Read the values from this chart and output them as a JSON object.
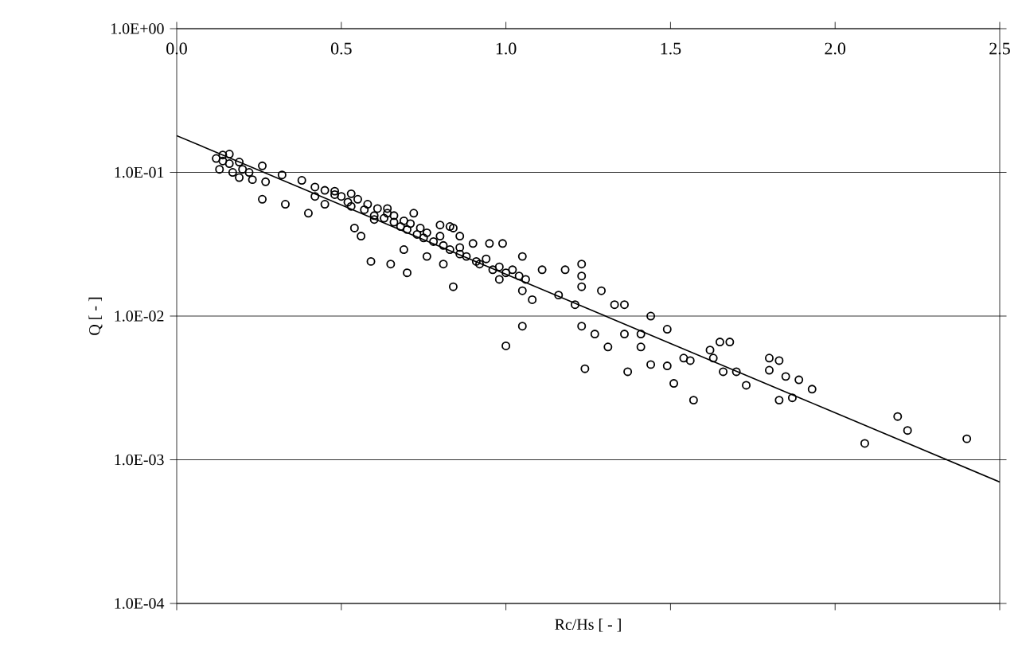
{
  "chart_data": {
    "type": "scatter",
    "xlabel": "Rc/Hs [ - ]",
    "ylabel": "Q [ - ]",
    "xlim": [
      0,
      2.5
    ],
    "ylim": [
      0.0001,
      1
    ],
    "log": "y",
    "grid": "y",
    "marker": "circle",
    "xticks": [
      {
        "value": 0,
        "label": "0.0"
      },
      {
        "value": 0.5,
        "label": "0.5"
      },
      {
        "value": 1,
        "label": "1.0"
      },
      {
        "value": 1.5,
        "label": "1.5"
      },
      {
        "value": 2,
        "label": "2.0"
      },
      {
        "value": 2.5,
        "label": "2.5"
      }
    ],
    "yticks": [
      {
        "value": 0.0001,
        "label": "1.0E-04"
      },
      {
        "value": 0.001,
        "label": "1.0E-03"
      },
      {
        "value": 0.01,
        "label": "1.0E-02"
      },
      {
        "value": 0.1,
        "label": "1.0E-01"
      },
      {
        "value": 1,
        "label": "1.0E+00"
      }
    ],
    "series": [
      {
        "color": "#000000",
        "x": [
          0.12,
          0.13,
          0.14,
          0.14,
          0.16,
          0.16,
          0.17,
          0.19,
          0.19,
          0.2,
          0.22,
          0.23,
          0.26,
          0.26,
          0.27,
          0.32,
          0.33,
          0.38,
          0.4,
          0.42,
          0.42,
          0.45,
          0.45,
          0.48,
          0.48,
          0.5,
          0.52,
          0.53,
          0.53,
          0.54,
          0.55,
          0.56,
          0.57,
          0.58,
          0.59,
          0.6,
          0.6,
          0.61,
          0.63,
          0.64,
          0.64,
          0.65,
          0.66,
          0.66,
          0.68,
          0.69,
          0.69,
          0.7,
          0.7,
          0.71,
          0.72,
          0.73,
          0.74,
          0.75,
          0.76,
          0.76,
          0.78,
          0.8,
          0.8,
          0.81,
          0.81,
          0.83,
          0.83,
          0.84,
          0.84,
          0.86,
          0.86,
          0.86,
          0.88,
          0.9,
          0.91,
          0.92,
          0.94,
          0.95,
          0.96,
          0.98,
          0.98,
          0.99,
          1.0,
          1.0,
          1.02,
          1.04,
          1.05,
          1.05,
          1.05,
          1.06,
          1.08,
          1.11,
          1.16,
          1.18,
          1.21,
          1.23,
          1.23,
          1.23,
          1.23,
          1.24,
          1.27,
          1.29,
          1.31,
          1.33,
          1.36,
          1.36,
          1.37,
          1.41,
          1.41,
          1.44,
          1.44,
          1.49,
          1.49,
          1.51,
          1.54,
          1.56,
          1.57,
          1.62,
          1.63,
          1.65,
          1.66,
          1.68,
          1.7,
          1.73,
          1.8,
          1.8,
          1.83,
          1.83,
          1.85,
          1.87,
          1.89,
          1.93,
          2.09,
          2.19,
          2.22,
          2.4
        ],
        "values": [
          0.125,
          0.105,
          0.132,
          0.12,
          0.134,
          0.115,
          0.1,
          0.118,
          0.092,
          0.105,
          0.1,
          0.089,
          0.111,
          0.065,
          0.086,
          0.096,
          0.06,
          0.088,
          0.052,
          0.068,
          0.079,
          0.06,
          0.075,
          0.074,
          0.07,
          0.068,
          0.062,
          0.071,
          0.058,
          0.041,
          0.065,
          0.036,
          0.055,
          0.06,
          0.024,
          0.047,
          0.05,
          0.056,
          0.048,
          0.056,
          0.052,
          0.023,
          0.045,
          0.05,
          0.042,
          0.029,
          0.046,
          0.04,
          0.02,
          0.044,
          0.052,
          0.037,
          0.041,
          0.035,
          0.038,
          0.026,
          0.033,
          0.036,
          0.043,
          0.031,
          0.023,
          0.029,
          0.042,
          0.041,
          0.016,
          0.027,
          0.036,
          0.03,
          0.026,
          0.032,
          0.024,
          0.023,
          0.025,
          0.032,
          0.021,
          0.022,
          0.018,
          0.032,
          0.02,
          0.0062,
          0.021,
          0.019,
          0.026,
          0.015,
          0.0085,
          0.018,
          0.013,
          0.021,
          0.014,
          0.021,
          0.012,
          0.023,
          0.019,
          0.016,
          0.0085,
          0.0043,
          0.0075,
          0.015,
          0.0061,
          0.012,
          0.012,
          0.0075,
          0.0041,
          0.0075,
          0.0061,
          0.01,
          0.0046,
          0.0081,
          0.0045,
          0.0034,
          0.0051,
          0.0049,
          0.0026,
          0.0058,
          0.0051,
          0.0066,
          0.0041,
          0.0066,
          0.0041,
          0.0033,
          0.0051,
          0.0042,
          0.0049,
          0.0026,
          0.0038,
          0.0027,
          0.0036,
          0.0031,
          0.0013,
          0.002,
          0.0016,
          0.0014
        ]
      },
      {
        "type": "line",
        "color": "#000000",
        "marker": "none",
        "x": [
          0,
          2.5
        ],
        "values": [
          0.18,
          0.0007
        ]
      }
    ]
  }
}
